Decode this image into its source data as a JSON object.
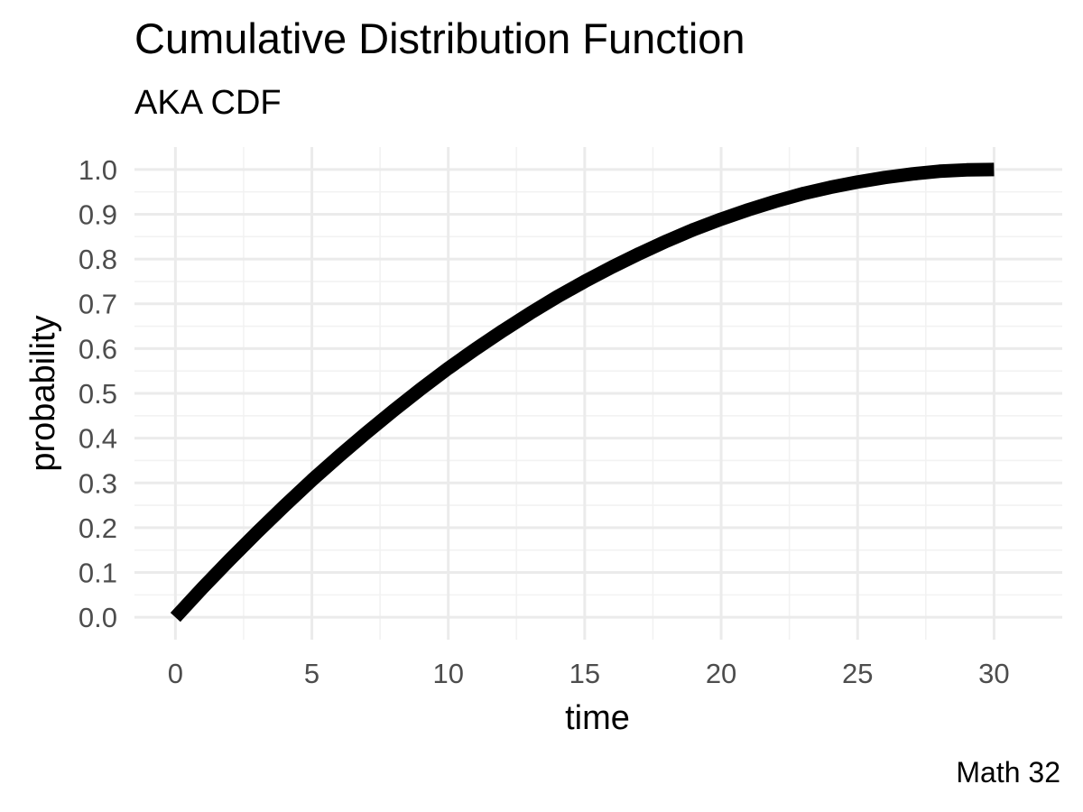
{
  "chart_data": {
    "type": "line",
    "title": "Cumulative Distribution Function",
    "subtitle": "AKA CDF",
    "caption": "Math 32",
    "xlabel": "time",
    "ylabel": "probability",
    "xlim": [
      -1.5,
      32.5
    ],
    "ylim": [
      -0.05,
      1.05
    ],
    "x_ticks": [
      0,
      5,
      10,
      15,
      20,
      25,
      30
    ],
    "x_tick_labels": [
      "0",
      "5",
      "10",
      "15",
      "20",
      "25",
      "30"
    ],
    "x_minor_ticks": [
      2.5,
      7.5,
      12.5,
      17.5,
      22.5,
      27.5
    ],
    "y_ticks": [
      0,
      0.1,
      0.2,
      0.3,
      0.4,
      0.5,
      0.6,
      0.7,
      0.8,
      0.9,
      1.0
    ],
    "y_tick_labels": [
      "0.0",
      "0.1",
      "0.2",
      "0.3",
      "0.4",
      "0.5",
      "0.6",
      "0.7",
      "0.8",
      "0.9",
      "1.0"
    ],
    "y_minor_ticks": [
      0.05,
      0.15,
      0.25,
      0.35,
      0.45,
      0.55,
      0.65,
      0.75,
      0.85,
      0.95
    ],
    "grid": true,
    "legend": "none",
    "series": [
      {
        "color": "#000000",
        "x": [
          0,
          1,
          2,
          3,
          4,
          5,
          6,
          7,
          8,
          9,
          10,
          11,
          12,
          13,
          14,
          15,
          16,
          17,
          18,
          19,
          20,
          21,
          22,
          23,
          24,
          25,
          26,
          27,
          28,
          29,
          30
        ],
        "values": [
          0.0,
          0.066,
          0.129,
          0.19,
          0.249,
          0.306,
          0.36,
          0.412,
          0.462,
          0.51,
          0.556,
          0.599,
          0.64,
          0.679,
          0.716,
          0.75,
          0.782,
          0.812,
          0.84,
          0.866,
          0.889,
          0.91,
          0.929,
          0.946,
          0.96,
          0.972,
          0.982,
          0.99,
          0.996,
          0.999,
          1.0
        ]
      }
    ]
  },
  "colors": {
    "background": "#ffffff",
    "grid_major": "#ebebeb",
    "grid_minor": "#f2f2f2",
    "tick_text": "#4d4d4d",
    "line": "#000000"
  }
}
